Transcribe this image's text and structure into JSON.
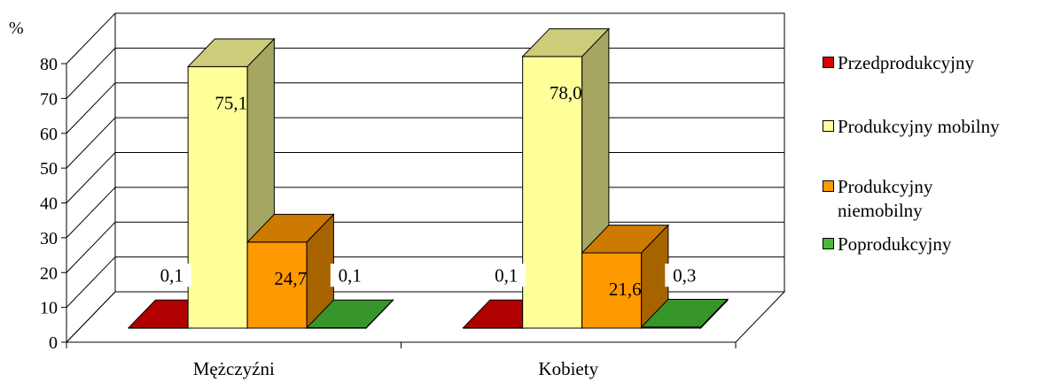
{
  "chart_data": {
    "type": "bar",
    "style": "3d-clustered",
    "ylabel": "%",
    "ylim": [
      0,
      80
    ],
    "yticks": [
      0,
      10,
      20,
      30,
      40,
      50,
      60,
      70,
      80
    ],
    "grid": true,
    "legend_position": "right",
    "categories": [
      "Mężczyźni",
      "Kobiety"
    ],
    "series": [
      {
        "name": "Przedprodukcyjny",
        "color": "#dd0000",
        "values": [
          0.1,
          0.1
        ],
        "labels": [
          "0,1",
          "0,1"
        ]
      },
      {
        "name": "Produkcyjny mobilny",
        "color": "#ffff99",
        "values": [
          75.1,
          78.0
        ],
        "labels": [
          "75,1",
          "78,0"
        ]
      },
      {
        "name": "Produkcyjny niemobilny",
        "color": "#ff9900",
        "values": [
          24.7,
          21.6
        ],
        "labels": [
          "24,7",
          "21,6"
        ]
      },
      {
        "name": "Poprodukcyjny",
        "color": "#44bb33",
        "values": [
          0.1,
          0.3
        ],
        "labels": [
          "0,1",
          "0,3"
        ]
      }
    ]
  }
}
